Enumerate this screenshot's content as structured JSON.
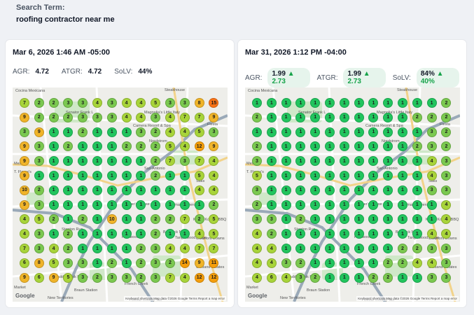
{
  "search": {
    "label": "Search Term:",
    "value": "roofing contractor near me"
  },
  "colors": {
    "rank_1": "#22c55e",
    "rank_2_3": "#7bc950",
    "rank_4_7": "#a8d43a",
    "rank_8_10": "#f0b429",
    "rank_11_plus": "#f59e0b",
    "rank_15": "#f97316"
  },
  "map_labels": [
    "Senator Frank L",
    "Magnolia's Little Italy",
    "Cocina Mexicana",
    "Steakhouse",
    "Camera Resort & Spa",
    "Nordstrom",
    "Fiesta",
    "Saks",
    "San Antonio",
    "Mesa",
    "T. Flores's",
    "Hunter's Chase",
    "Walmart Supercenter",
    "Stanton Run",
    "Parkwood",
    "Babcock North",
    "Tanglewood Ridge",
    "Oakmont Downs",
    "KPOT Korean BBQ & Hot Pot",
    "Oakland Estates",
    "Saddlebrook Farms",
    "French Creek",
    "Braun Station",
    "Bexar County Tax",
    "New Territories",
    "Market"
  ],
  "google": "Google",
  "attribution": "Keyboard shortcuts   Map data ©2026 Google   Terms   Report a map error",
  "panels": [
    {
      "date": "Mar 6, 2026 1:46 AM -05:00",
      "metrics": [
        {
          "label": "AGR:",
          "value": "4.72",
          "delta": ""
        },
        {
          "label": "ATGR:",
          "value": "4.72",
          "delta": ""
        },
        {
          "label": "SoLV:",
          "value": "44%",
          "delta": ""
        }
      ],
      "grid": [
        [
          "7",
          "2",
          "2",
          "3",
          "3",
          "4",
          "3",
          "4",
          "4",
          "5",
          "3",
          "3",
          "8",
          "15"
        ],
        [
          "9",
          "2",
          "2",
          "2",
          "3",
          "3",
          "3",
          "4",
          "4",
          "3",
          "4",
          "7",
          "7",
          "9"
        ],
        [
          "3",
          "9",
          "1",
          "1",
          "2",
          "1",
          "1",
          "1",
          "3",
          "2",
          "4",
          "4",
          "5",
          "3"
        ],
        [
          "9",
          "3",
          "1",
          "2",
          "1",
          "1",
          "1",
          "2",
          "2",
          "2",
          "5",
          "4",
          "12",
          "9"
        ],
        [
          "9",
          "3",
          "1",
          "1",
          "1",
          "1",
          "1",
          "1",
          "1",
          "2",
          "7",
          "3",
          "7",
          "4"
        ],
        [
          "9",
          "1",
          "1",
          "1",
          "1",
          "1",
          "1",
          "1",
          "1",
          "2",
          "1",
          "1",
          "5",
          "4"
        ],
        [
          "10",
          "2",
          "1",
          "1",
          "1",
          "1",
          "1",
          "1",
          "1",
          "1",
          "1",
          "1",
          "4",
          "4"
        ],
        [
          "9",
          "3",
          "1",
          "1",
          "1",
          "1",
          "1",
          "1",
          "1",
          "1",
          "1",
          "1",
          "1",
          "2"
        ],
        [
          "4",
          "5",
          "2",
          "1",
          "2",
          "1",
          "10",
          "1",
          "1",
          "2",
          "2",
          "7",
          "2",
          "5"
        ],
        [
          "4",
          "3",
          "1",
          "2",
          "1",
          "1",
          "1",
          "1",
          "1",
          "2",
          "1",
          "1",
          "4",
          "5"
        ],
        [
          "7",
          "3",
          "4",
          "2",
          "1",
          "1",
          "1",
          "1",
          "2",
          "3",
          "4",
          "4",
          "7",
          "7"
        ],
        [
          "6",
          "8",
          "5",
          "3",
          "3",
          "1",
          "2",
          "1",
          "2",
          "3",
          "2",
          "14",
          "9",
          "11"
        ],
        [
          "9",
          "6",
          "9",
          "5",
          "3",
          "2",
          "3",
          "3",
          "2",
          "3",
          "7",
          "4",
          "12",
          "12"
        ]
      ]
    },
    {
      "date": "Mar 31, 2026 1:12 PM -04:00",
      "metrics": [
        {
          "label": "AGR:",
          "value": "1.99",
          "delta": "▲ 2.73"
        },
        {
          "label": "ATGR:",
          "value": "1.99",
          "delta": "▲ 2.73"
        },
        {
          "label": "SoLV:",
          "value": "84%",
          "delta": "▲ 40%"
        }
      ],
      "grid": [
        [
          "1",
          "1",
          "1",
          "1",
          "1",
          "1",
          "1",
          "1",
          "1",
          "1",
          "1",
          "1",
          "1",
          "2"
        ],
        [
          "2",
          "1",
          "1",
          "1",
          "1",
          "1",
          "1",
          "1",
          "1",
          "1",
          "1",
          "2",
          "2",
          "2"
        ],
        [
          "1",
          "1",
          "1",
          "1",
          "1",
          "1",
          "1",
          "1",
          "1",
          "1",
          "1",
          "1",
          "3",
          "2"
        ],
        [
          "2",
          "1",
          "1",
          "1",
          "1",
          "1",
          "1",
          "1",
          "1",
          "1",
          "1",
          "2",
          "3",
          "2"
        ],
        [
          "3",
          "1",
          "1",
          "1",
          "1",
          "1",
          "1",
          "1",
          "1",
          "1",
          "1",
          "1",
          "4",
          "3"
        ],
        [
          "5",
          "1",
          "1",
          "1",
          "1",
          "1",
          "1",
          "1",
          "1",
          "1",
          "1",
          "1",
          "4",
          "3"
        ],
        [
          "3",
          "1",
          "1",
          "1",
          "1",
          "1",
          "1",
          "1",
          "1",
          "1",
          "1",
          "1",
          "3",
          "3"
        ],
        [
          "2",
          "1",
          "1",
          "1",
          "1",
          "1",
          "1",
          "1",
          "1",
          "1",
          "1",
          "1",
          "1",
          "4"
        ],
        [
          "3",
          "3",
          "1",
          "2",
          "1",
          "1",
          "1",
          "1",
          "1",
          "1",
          "1",
          "1",
          "1",
          "4"
        ],
        [
          "4",
          "2",
          "1",
          "1",
          "1",
          "1",
          "1",
          "1",
          "1",
          "1",
          "1",
          "1",
          "4",
          "4"
        ],
        [
          "4",
          "4",
          "1",
          "1",
          "1",
          "1",
          "1",
          "1",
          "1",
          "1",
          "2",
          "2",
          "3",
          "3"
        ],
        [
          "4",
          "4",
          "3",
          "2",
          "1",
          "1",
          "1",
          "1",
          "1",
          "2",
          "2",
          "4",
          "4",
          "3"
        ],
        [
          "4",
          "6",
          "4",
          "3",
          "2",
          "1",
          "1",
          "1",
          "2",
          "2",
          "1",
          "1",
          "3",
          "3"
        ]
      ]
    }
  ]
}
